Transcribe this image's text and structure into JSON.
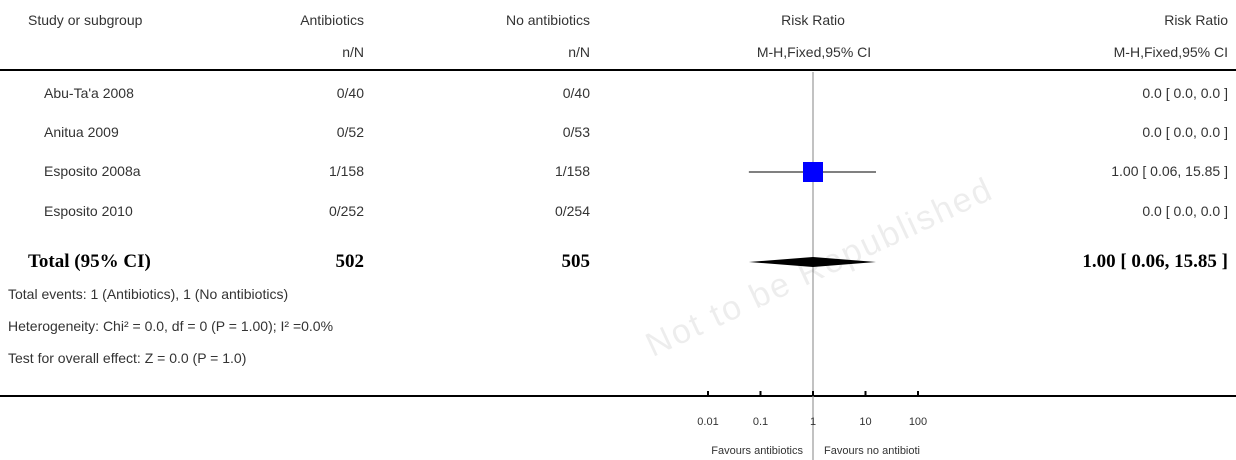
{
  "header": {
    "col_study": "Study or subgroup",
    "col_treat": "Antibiotics",
    "col_control": "No antibiotics",
    "col_plot": "Risk Ratio",
    "col_effect": "Risk Ratio",
    "sub_treat": "n/N",
    "sub_control": "n/N",
    "sub_plot": "M-H,Fixed,95% CI",
    "sub_effect": "M-H,Fixed,95% CI"
  },
  "rows": [
    {
      "study": "Abu-Ta'a 2008",
      "treat": "0/40",
      "control": "0/40",
      "effect": "0.0 [ 0.0, 0.0 ]"
    },
    {
      "study": "Anitua 2009",
      "treat": "0/52",
      "control": "0/53",
      "effect": "0.0 [ 0.0, 0.0 ]"
    },
    {
      "study": "Esposito 2008a",
      "treat": "1/158",
      "control": "1/158",
      "effect": "1.00 [ 0.06, 15.85 ]"
    },
    {
      "study": "Esposito 2010",
      "treat": "0/252",
      "control": "0/254",
      "effect": "0.0 [ 0.0, 0.0 ]"
    }
  ],
  "total": {
    "label": "Total (95% CI)",
    "treat": "502",
    "control": "505",
    "effect": "1.00 [ 0.06, 15.85 ]"
  },
  "footnotes": {
    "events": "Total events: 1 (Antibiotics), 1 (No antibiotics)",
    "heterogeneity": "Heterogeneity: Chi² = 0.0, df = 0 (P = 1.00); I² =0.0%",
    "overall": "Test for overall effect: Z = 0.0 (P = 1.0)"
  },
  "favours": {
    "left": "Favours antibiotics",
    "right": "Favours no antibioti"
  },
  "watermark": "Not to be Republished",
  "colors": {
    "square": "#0000ff",
    "diamond": "#000000",
    "axis": "#000000",
    "reference": "#999999"
  },
  "chart_data": {
    "type": "scatter",
    "scale": "log",
    "xlim": [
      0.01,
      100
    ],
    "x_ticks": [
      0.01,
      0.1,
      1,
      10,
      100
    ],
    "x_tick_labels": [
      "0.01",
      "0.1",
      "1",
      "10",
      "100"
    ],
    "reference_line": 1,
    "studies": [
      {
        "name": "Abu-Ta'a 2008",
        "estimate": null,
        "ci": null
      },
      {
        "name": "Anitua 2009",
        "estimate": null,
        "ci": null
      },
      {
        "name": "Esposito 2008a",
        "estimate": 1.0,
        "ci": [
          0.06,
          15.85
        ]
      },
      {
        "name": "Esposito 2010",
        "estimate": null,
        "ci": null
      }
    ],
    "pooled": {
      "estimate": 1.0,
      "ci": [
        0.06,
        15.85
      ]
    }
  }
}
